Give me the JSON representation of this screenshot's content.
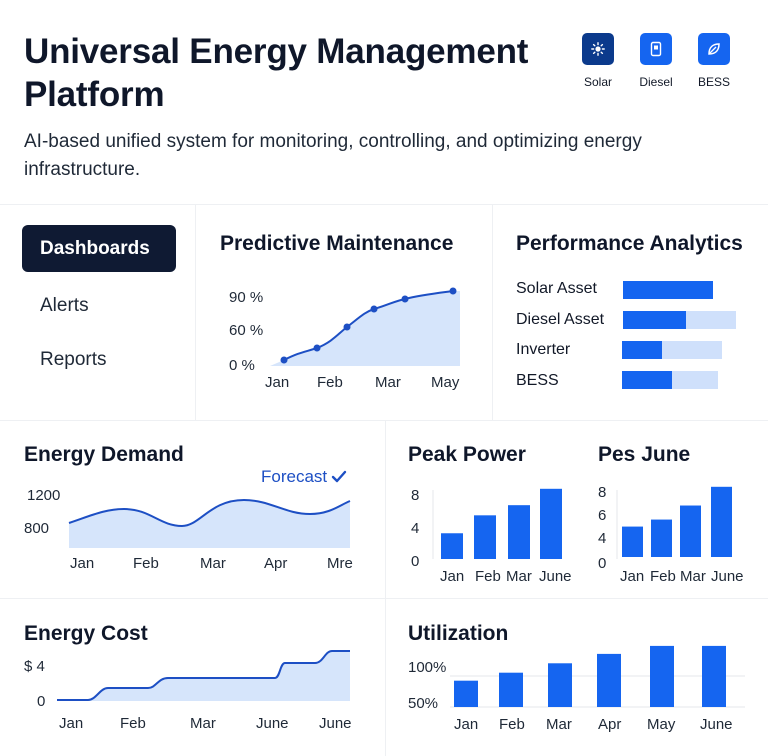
{
  "header": {
    "title": "Universal Energy Management Platform",
    "subtitle": "AI-based unified system for monitoring, controlling, and optimizing energy infrastructure.",
    "assets": [
      {
        "label": "Solar",
        "icon": "sun-icon",
        "color": "#0b3a8c"
      },
      {
        "label": "Diesel",
        "icon": "fuel-icon",
        "color": "#1565f0"
      },
      {
        "label": "BESS",
        "icon": "leaf-icon",
        "color": "#1565f0"
      }
    ]
  },
  "nav": {
    "items": [
      {
        "label": "Dashboards",
        "active": true
      },
      {
        "label": "Alerts",
        "active": false
      },
      {
        "label": "Reports",
        "active": false
      }
    ]
  },
  "predictive": {
    "title": "Predictive Maintenance",
    "yticks": [
      "90 %",
      "60 %",
      "0 %"
    ],
    "xticks": [
      "Jan",
      "Feb",
      "Mar",
      "May"
    ]
  },
  "performance": {
    "title": "Performance Analytics",
    "rows": [
      {
        "label": "Solar Asset",
        "fill": 1.0
      },
      {
        "label": "Diesel Asset",
        "fill": 0.56
      },
      {
        "label": "Inverter",
        "fill": 0.4
      },
      {
        "label": "BESS",
        "fill": 0.52
      }
    ]
  },
  "energy_demand": {
    "title": "Energy Demand",
    "forecast_label": "Forecast",
    "yticks": [
      "1200",
      "800"
    ],
    "xticks": [
      "Jan",
      "Feb",
      "Mar",
      "Apr",
      "Mre"
    ]
  },
  "peak_power": {
    "title": "Peak Power",
    "yticks": [
      "8",
      "4",
      "0"
    ],
    "xticks": [
      "Jan",
      "Feb",
      "Mar",
      "June"
    ],
    "values": [
      3.3,
      5.6,
      6.9,
      9
    ]
  },
  "pes_june": {
    "title": "Pes June",
    "yticks": [
      "8",
      "6",
      "4",
      "0"
    ],
    "xticks": [
      "Jan",
      "Feb",
      "Mar",
      "June"
    ],
    "values": [
      3.9,
      4.8,
      6.6,
      9
    ]
  },
  "energy_cost": {
    "title": "Energy Cost",
    "yticks": [
      "$ 4",
      "0"
    ],
    "xticks": [
      "Jan",
      "Feb",
      "Mar",
      "June",
      "June"
    ]
  },
  "utilization": {
    "title": "Utilization",
    "yticks": [
      "100%",
      "50%"
    ],
    "xticks": [
      "Jan",
      "Feb",
      "Mar",
      "Apr",
      "May",
      "June"
    ],
    "values": [
      56,
      73,
      93,
      113,
      130,
      130
    ]
  }
}
